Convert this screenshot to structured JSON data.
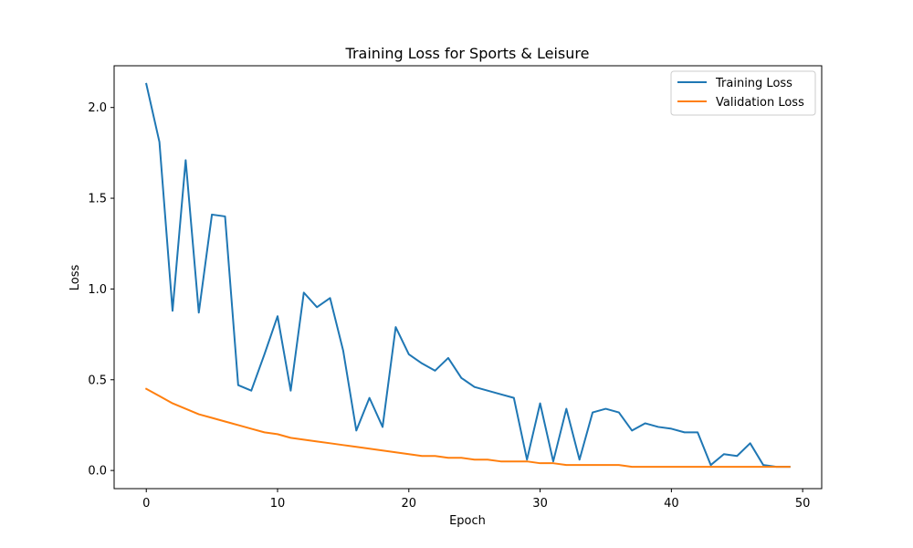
{
  "chart_data": {
    "type": "line",
    "title": "Training Loss for Sports & Leisure",
    "xlabel": "Epoch",
    "ylabel": "Loss",
    "xlim": [
      -2.45,
      51.45
    ],
    "ylim": [
      -0.1,
      2.23
    ],
    "xticks": [
      0,
      10,
      20,
      30,
      40,
      50
    ],
    "xtick_labels": [
      "0",
      "10",
      "20",
      "30",
      "40",
      "50"
    ],
    "yticks": [
      0.0,
      0.5,
      1.0,
      1.5,
      2.0
    ],
    "ytick_labels": [
      "0.0",
      "0.5",
      "1.0",
      "1.5",
      "2.0"
    ],
    "grid": false,
    "legend_position": "top-right",
    "x": [
      0,
      1,
      2,
      3,
      4,
      5,
      6,
      7,
      8,
      9,
      10,
      11,
      12,
      13,
      14,
      15,
      16,
      17,
      18,
      19,
      20,
      21,
      22,
      23,
      24,
      25,
      26,
      27,
      28,
      29,
      30,
      31,
      32,
      33,
      34,
      35,
      36,
      37,
      38,
      39,
      40,
      41,
      42,
      43,
      44,
      45,
      46,
      47,
      48,
      49
    ],
    "series": [
      {
        "name": "Training Loss",
        "color": "#1f77b4",
        "values": [
          2.13,
          1.81,
          0.88,
          1.71,
          0.87,
          1.41,
          1.4,
          0.47,
          0.44,
          0.64,
          0.85,
          0.44,
          0.98,
          0.9,
          0.95,
          0.66,
          0.22,
          0.4,
          0.24,
          0.79,
          0.64,
          0.59,
          0.55,
          0.62,
          0.51,
          0.46,
          0.44,
          0.42,
          0.4,
          0.06,
          0.37,
          0.05,
          0.34,
          0.06,
          0.32,
          0.34,
          0.32,
          0.22,
          0.26,
          0.24,
          0.23,
          0.21,
          0.21,
          0.03,
          0.09,
          0.08,
          0.15,
          0.03,
          0.02,
          0.02
        ]
      },
      {
        "name": "Validation Loss",
        "color": "#ff7f0e",
        "values": [
          0.45,
          0.41,
          0.37,
          0.34,
          0.31,
          0.29,
          0.27,
          0.25,
          0.23,
          0.21,
          0.2,
          0.18,
          0.17,
          0.16,
          0.15,
          0.14,
          0.13,
          0.12,
          0.11,
          0.1,
          0.09,
          0.08,
          0.08,
          0.07,
          0.07,
          0.06,
          0.06,
          0.05,
          0.05,
          0.05,
          0.04,
          0.04,
          0.03,
          0.03,
          0.03,
          0.03,
          0.03,
          0.02,
          0.02,
          0.02,
          0.02,
          0.02,
          0.02,
          0.02,
          0.02,
          0.02,
          0.02,
          0.02,
          0.02,
          0.02
        ]
      }
    ]
  }
}
